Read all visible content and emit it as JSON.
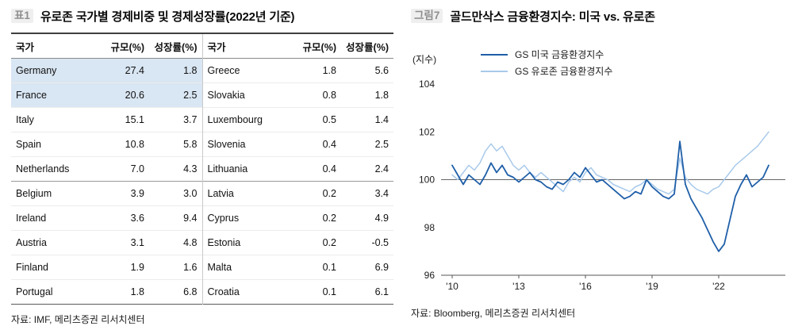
{
  "left_panel": {
    "tag": "표1",
    "title": "유로존 국가별 경제비중 및 경제성장률(2022년 기준)",
    "source": "자료: IMF, 메리츠증권 리서치센터",
    "table": {
      "headers": [
        "국가",
        "규모(%)",
        "성장률(%)",
        "국가",
        "규모(%)",
        "성장률(%)"
      ],
      "group_separator_after_index": 4,
      "left_rows": [
        {
          "country": "Germany",
          "size": "27.4",
          "growth": "1.8",
          "highlight": true
        },
        {
          "country": "France",
          "size": "20.6",
          "growth": "2.5",
          "highlight": true
        },
        {
          "country": "Italy",
          "size": "15.1",
          "growth": "3.7",
          "highlight": false
        },
        {
          "country": "Spain",
          "size": "10.8",
          "growth": "5.8",
          "highlight": false
        },
        {
          "country": "Netherlands",
          "size": "7.0",
          "growth": "4.3",
          "highlight": false
        },
        {
          "country": "Belgium",
          "size": "3.9",
          "growth": "3.0",
          "highlight": false
        },
        {
          "country": "Ireland",
          "size": "3.6",
          "growth": "9.4",
          "highlight": false
        },
        {
          "country": "Austria",
          "size": "3.1",
          "growth": "4.8",
          "highlight": false
        },
        {
          "country": "Finland",
          "size": "1.9",
          "growth": "1.6",
          "highlight": false
        },
        {
          "country": "Portugal",
          "size": "1.8",
          "growth": "6.8",
          "highlight": false
        }
      ],
      "right_rows": [
        {
          "country": "Greece",
          "size": "1.8",
          "growth": "5.6"
        },
        {
          "country": "Slovakia",
          "size": "0.8",
          "growth": "1.8"
        },
        {
          "country": "Luxembourg",
          "size": "0.5",
          "growth": "1.4"
        },
        {
          "country": "Slovenia",
          "size": "0.4",
          "growth": "2.5"
        },
        {
          "country": "Lithuania",
          "size": "0.4",
          "growth": "2.4"
        },
        {
          "country": "Latvia",
          "size": "0.2",
          "growth": "3.4"
        },
        {
          "country": "Cyprus",
          "size": "0.2",
          "growth": "4.9"
        },
        {
          "country": "Estonia",
          "size": "0.2",
          "growth": "-0.5"
        },
        {
          "country": "Malta",
          "size": "0.1",
          "growth": "6.9"
        },
        {
          "country": "Croatia",
          "size": "0.1",
          "growth": "6.1"
        }
      ]
    }
  },
  "right_panel": {
    "tag": "그림7",
    "title": "골드만삭스 금융환경지수: 미국 vs. 유로존",
    "y_axis_label": "(지수)",
    "source": "자료: Bloomberg, 메리츠증권 리서치센터"
  },
  "chart_data": {
    "type": "line",
    "title": "골드만삭스 금융환경지수: 미국 vs. 유로존",
    "ylabel": "(지수)",
    "ylim": [
      96,
      104
    ],
    "yticks": [
      96,
      98,
      100,
      102,
      104
    ],
    "xlim": [
      2009.5,
      2025.0
    ],
    "xticks": [
      2010,
      2013,
      2016,
      2019,
      2022
    ],
    "xtick_labels": [
      "'10",
      "'13",
      "'16",
      "'19",
      "'22"
    ],
    "reference_line": 100,
    "grid": false,
    "legend_position": "top",
    "series": [
      {
        "name": "GS 미국 금융환경지수",
        "color": "#1F5FA8",
        "x": [
          2010.0,
          2010.25,
          2010.5,
          2010.75,
          2011.0,
          2011.25,
          2011.5,
          2011.75,
          2012.0,
          2012.25,
          2012.5,
          2012.75,
          2013.0,
          2013.25,
          2013.5,
          2013.75,
          2014.0,
          2014.25,
          2014.5,
          2014.75,
          2015.0,
          2015.25,
          2015.5,
          2015.75,
          2016.0,
          2016.25,
          2016.5,
          2016.75,
          2017.0,
          2017.25,
          2017.5,
          2017.75,
          2018.0,
          2018.25,
          2018.5,
          2018.75,
          2019.0,
          2019.25,
          2019.5,
          2019.75,
          2020.0,
          2020.25,
          2020.5,
          2020.75,
          2021.0,
          2021.25,
          2021.5,
          2021.75,
          2022.0,
          2022.25,
          2022.5,
          2022.75,
          2023.0,
          2023.25,
          2023.5,
          2023.75,
          2024.0,
          2024.25
        ],
        "values": [
          100.6,
          100.2,
          99.8,
          100.2,
          100.0,
          99.8,
          100.2,
          100.7,
          100.3,
          100.6,
          100.2,
          100.1,
          99.9,
          100.1,
          100.3,
          100.0,
          99.9,
          99.7,
          99.6,
          99.9,
          99.8,
          100.0,
          100.3,
          100.1,
          100.5,
          100.2,
          99.9,
          100.0,
          99.8,
          99.6,
          99.4,
          99.2,
          99.3,
          99.5,
          99.4,
          100.0,
          99.7,
          99.5,
          99.3,
          99.2,
          99.4,
          101.6,
          99.8,
          99.2,
          98.8,
          98.4,
          97.9,
          97.4,
          97.0,
          97.3,
          98.3,
          99.3,
          99.8,
          100.2,
          99.7,
          99.9,
          100.1,
          100.6
        ]
      },
      {
        "name": "GS 유로존 금융환경지수",
        "color": "#A9CAEB",
        "x": [
          2010.0,
          2010.25,
          2010.5,
          2010.75,
          2011.0,
          2011.25,
          2011.5,
          2011.75,
          2012.0,
          2012.25,
          2012.5,
          2012.75,
          2013.0,
          2013.25,
          2013.5,
          2013.75,
          2014.0,
          2014.25,
          2014.5,
          2014.75,
          2015.0,
          2015.25,
          2015.5,
          2015.75,
          2016.0,
          2016.25,
          2016.5,
          2016.75,
          2017.0,
          2017.25,
          2017.5,
          2017.75,
          2018.0,
          2018.25,
          2018.5,
          2018.75,
          2019.0,
          2019.25,
          2019.5,
          2019.75,
          2020.0,
          2020.25,
          2020.5,
          2020.75,
          2021.0,
          2021.25,
          2021.5,
          2021.75,
          2022.0,
          2022.25,
          2022.5,
          2022.75,
          2023.0,
          2023.25,
          2023.5,
          2023.75,
          2024.0,
          2024.25
        ],
        "values": [
          100.2,
          100.0,
          100.3,
          100.6,
          100.4,
          100.7,
          101.2,
          101.5,
          101.2,
          101.4,
          101.0,
          100.6,
          100.4,
          100.6,
          100.3,
          100.1,
          100.3,
          100.1,
          99.9,
          99.7,
          99.5,
          99.9,
          100.1,
          99.9,
          100.3,
          100.5,
          100.2,
          100.1,
          100.0,
          99.8,
          99.7,
          99.6,
          99.5,
          99.7,
          99.8,
          100.0,
          99.8,
          99.6,
          99.5,
          99.4,
          99.6,
          100.9,
          100.1,
          99.8,
          99.6,
          99.5,
          99.4,
          99.6,
          99.7,
          100.0,
          100.3,
          100.6,
          100.8,
          101.0,
          101.2,
          101.4,
          101.7,
          102.0
        ]
      }
    ]
  }
}
